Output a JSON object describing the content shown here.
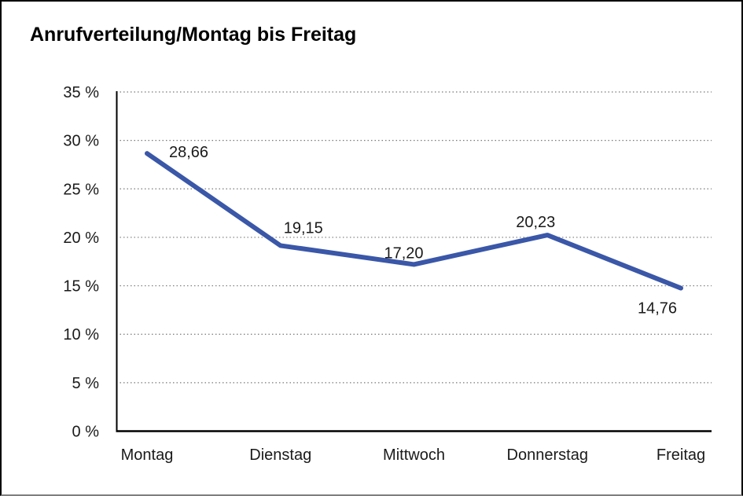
{
  "title": "Anrufverteilung/Montag bis Freitag",
  "chart_data": {
    "type": "line",
    "title": "Anrufverteilung/Montag bis Freitag",
    "categories": [
      "Montag",
      "Dienstag",
      "Mittwoch",
      "Donnerstag",
      "Freitag"
    ],
    "series": [
      {
        "name": "Anrufverteilung",
        "values": [
          28.66,
          19.15,
          17.2,
          20.23,
          14.76
        ],
        "value_labels": [
          "28,66",
          "19,15",
          "17,20",
          "20,23",
          "14,76"
        ]
      }
    ],
    "xlabel": "",
    "ylabel": "",
    "ylim": [
      0,
      35
    ],
    "ytick_step": 5,
    "ytick_labels": [
      "0 %",
      "5 %",
      "10 %",
      "15 %",
      "20 %",
      "25 %",
      "30 %",
      "35 %"
    ],
    "grid": "horizontal-dotted",
    "legend": "none",
    "line_color": "#3A57A8",
    "axis_color": "#000000",
    "grid_color": "#787878",
    "text_color": "#1a1a1a"
  },
  "colors": {
    "background": "#ffffff",
    "frame_border": "#000000",
    "frame_border_bottom": "#7e7e7e",
    "line": "#3A57A8"
  }
}
